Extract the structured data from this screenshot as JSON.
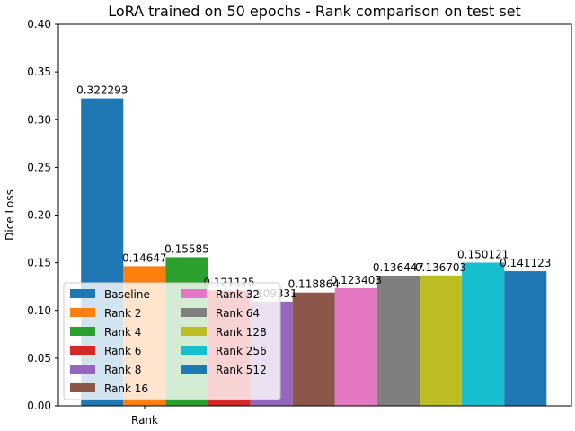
{
  "chart_data": {
    "type": "bar",
    "title": "LoRA trained on 50 epochs - Rank comparison on test set",
    "xlabel": "",
    "ylabel": "Dice Loss",
    "categories": [
      "Rank"
    ],
    "ylim": [
      0,
      0.4
    ],
    "yticks": [
      "0.00",
      "0.05",
      "0.10",
      "0.15",
      "0.20",
      "0.25",
      "0.30",
      "0.35",
      "0.40"
    ],
    "grid": false,
    "legend_position": "lower-left",
    "series": [
      {
        "name": "Baseline",
        "value": 0.322293,
        "label": "0.322293",
        "color": "#1f77b4"
      },
      {
        "name": "Rank 2",
        "value": 0.14647,
        "label": "0.14647",
        "color": "#ff7f0e"
      },
      {
        "name": "Rank 4",
        "value": 0.15585,
        "label": "0.15585",
        "color": "#2ca02c"
      },
      {
        "name": "Rank 6",
        "value": 0.121125,
        "label": "0.121125",
        "color": "#d62728"
      },
      {
        "name": "Rank 8",
        "value": 0.109331,
        "label": "0.109331",
        "color": "#9467bd"
      },
      {
        "name": "Rank 16",
        "value": 0.118864,
        "label": "0.118864",
        "color": "#8c564b"
      },
      {
        "name": "Rank 32",
        "value": 0.123403,
        "label": "0.123403",
        "color": "#e377c2"
      },
      {
        "name": "Rank 64",
        "value": 0.136447,
        "label": "0.136447",
        "color": "#7f7f7f"
      },
      {
        "name": "Rank 128",
        "value": 0.136703,
        "label": "0.136703",
        "color": "#bcbd22"
      },
      {
        "name": "Rank 256",
        "value": 0.150121,
        "label": "0.150121",
        "color": "#17becf"
      },
      {
        "name": "Rank 512",
        "value": 0.141123,
        "label": "0.141123",
        "color": "#1f77b4"
      }
    ]
  }
}
